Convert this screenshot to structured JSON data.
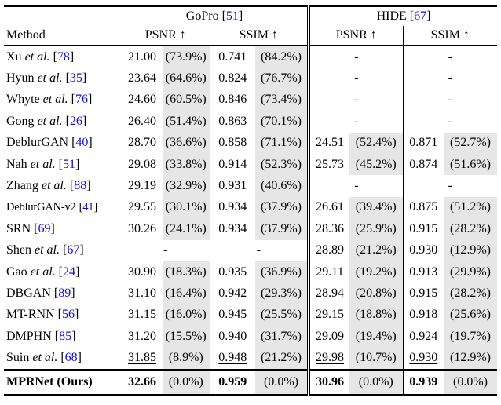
{
  "colors": {
    "citation_link": "#0F0FD8",
    "percent_highlight": "#E6E6E6",
    "text": "#000000",
    "rules": "#000000",
    "background": "#FFFFFF"
  },
  "table": {
    "citation_brackets": [
      "[",
      "]"
    ],
    "missing_marker": "-",
    "header": {
      "method": "Method",
      "groups": [
        {
          "name": "GoPro",
          "ref": "51"
        },
        {
          "name": "HIDE",
          "ref": "67"
        }
      ],
      "metrics": [
        "PSNR ↑",
        "SSIM ↑"
      ]
    },
    "rows": [
      {
        "method": {
          "name": "Xu",
          "etal": true,
          "ref": "78"
        },
        "cells": [
          {
            "v": "21.00",
            "p": "(73.9%)"
          },
          {
            "v": "0.741",
            "p": "(84.2%)"
          },
          {
            "dash": true
          },
          {
            "dash": true
          }
        ]
      },
      {
        "method": {
          "name": "Hyun",
          "etal": true,
          "ref": "35"
        },
        "cells": [
          {
            "v": "23.64",
            "p": "(64.6%)"
          },
          {
            "v": "0.824",
            "p": "(76.7%)"
          },
          {
            "dash": true
          },
          {
            "dash": true
          }
        ]
      },
      {
        "method": {
          "name": "Whyte",
          "etal": true,
          "ref": "76"
        },
        "cells": [
          {
            "v": "24.60",
            "p": "(60.5%)"
          },
          {
            "v": "0.846",
            "p": "(73.4%)"
          },
          {
            "dash": true
          },
          {
            "dash": true
          }
        ]
      },
      {
        "method": {
          "name": "Gong",
          "etal": true,
          "ref": "26"
        },
        "cells": [
          {
            "v": "26.40",
            "p": "(51.4%)"
          },
          {
            "v": "0.863",
            "p": "(70.1%)"
          },
          {
            "dash": true
          },
          {
            "dash": true
          }
        ]
      },
      {
        "method": {
          "name": "DeblurGAN",
          "etal": false,
          "ref": "40"
        },
        "cells": [
          {
            "v": "28.70",
            "p": "(36.6%)"
          },
          {
            "v": "0.858",
            "p": "(71.1%)"
          },
          {
            "v": "24.51",
            "p": "(52.4%)"
          },
          {
            "v": "0.871",
            "p": "(52.7%)"
          }
        ]
      },
      {
        "method": {
          "name": "Nah",
          "etal": true,
          "ref": "51"
        },
        "cells": [
          {
            "v": "29.08",
            "p": "(33.8%)"
          },
          {
            "v": "0.914",
            "p": "(52.3%)"
          },
          {
            "v": "25.73",
            "p": "(45.2%)"
          },
          {
            "v": "0.874",
            "p": "(51.6%)"
          }
        ]
      },
      {
        "method": {
          "name": "Zhang",
          "etal": true,
          "ref": "88"
        },
        "cells": [
          {
            "v": "29.19",
            "p": "(32.9%)"
          },
          {
            "v": "0.931",
            "p": "(40.6%)"
          },
          {
            "dash": true
          },
          {
            "dash": true
          }
        ]
      },
      {
        "method": {
          "name": "DeblurGAN-v2",
          "etal": false,
          "ref": "41"
        },
        "narrow": true,
        "cells": [
          {
            "v": "29.55",
            "p": "(30.1%)"
          },
          {
            "v": "0.934",
            "p": "(37.9%)"
          },
          {
            "v": "26.61",
            "p": "(39.4%)"
          },
          {
            "v": "0.875",
            "p": "(51.2%)"
          }
        ]
      },
      {
        "method": {
          "name": "SRN",
          "etal": false,
          "ref": "69"
        },
        "cells": [
          {
            "v": "30.26",
            "p": "(24.1%)"
          },
          {
            "v": "0.934",
            "p": "(37.9%)"
          },
          {
            "v": "28.36",
            "p": "(25.9%)"
          },
          {
            "v": "0.915",
            "p": "(28.2%)"
          }
        ]
      },
      {
        "method": {
          "name": "Shen",
          "etal": true,
          "ref": "67"
        },
        "cells": [
          {
            "dash": true
          },
          {
            "dash": true
          },
          {
            "v": "28.89",
            "p": "(21.2%)"
          },
          {
            "v": "0.930",
            "p": "(12.9%)"
          }
        ]
      },
      {
        "method": {
          "name": "Gao",
          "etal": true,
          "ref": "24"
        },
        "cells": [
          {
            "v": "30.90",
            "p": "(18.3%)"
          },
          {
            "v": "0.935",
            "p": "(36.9%)"
          },
          {
            "v": "29.11",
            "p": "(19.2%)"
          },
          {
            "v": "0.913",
            "p": "(29.9%)"
          }
        ]
      },
      {
        "method": {
          "name": "DBGAN",
          "etal": false,
          "ref": "89"
        },
        "cells": [
          {
            "v": "31.10",
            "p": "(16.4%)"
          },
          {
            "v": "0.942",
            "p": "(29.3%)"
          },
          {
            "v": "28.94",
            "p": "(20.8%)"
          },
          {
            "v": "0.915",
            "p": "(28.2%)"
          }
        ]
      },
      {
        "method": {
          "name": "MT-RNN",
          "etal": false,
          "ref": "56"
        },
        "cells": [
          {
            "v": "31.15",
            "p": "(16.0%)"
          },
          {
            "v": "0.945",
            "p": "(25.5%)"
          },
          {
            "v": "29.15",
            "p": "(18.8%)"
          },
          {
            "v": "0.918",
            "p": "(25.6%)"
          }
        ]
      },
      {
        "method": {
          "name": "DMPHN",
          "etal": false,
          "ref": "85"
        },
        "cells": [
          {
            "v": "31.20",
            "p": "(15.5%)"
          },
          {
            "v": "0.940",
            "p": "(31.7%)"
          },
          {
            "v": "29.09",
            "p": "(19.4%)"
          },
          {
            "v": "0.924",
            "p": "(19.7%)"
          }
        ]
      },
      {
        "method": {
          "name": "Suin",
          "etal": true,
          "ref": "68"
        },
        "underline": true,
        "cells": [
          {
            "v": "31.85",
            "p": "(8.9%)"
          },
          {
            "v": "0.948",
            "p": "(21.2%)"
          },
          {
            "v": "29.98",
            "p": "(10.7%)"
          },
          {
            "v": "0.930",
            "p": "(12.9%)"
          }
        ]
      },
      {
        "method": {
          "name": "MPRNet (Ours)",
          "etal": false,
          "ref": null
        },
        "final": true,
        "cells": [
          {
            "v": "32.66",
            "p": "(0.0%)"
          },
          {
            "v": "0.959",
            "p": "(0.0%)"
          },
          {
            "v": "30.96",
            "p": "(0.0%)"
          },
          {
            "v": "0.939",
            "p": "(0.0%)"
          }
        ]
      }
    ]
  }
}
